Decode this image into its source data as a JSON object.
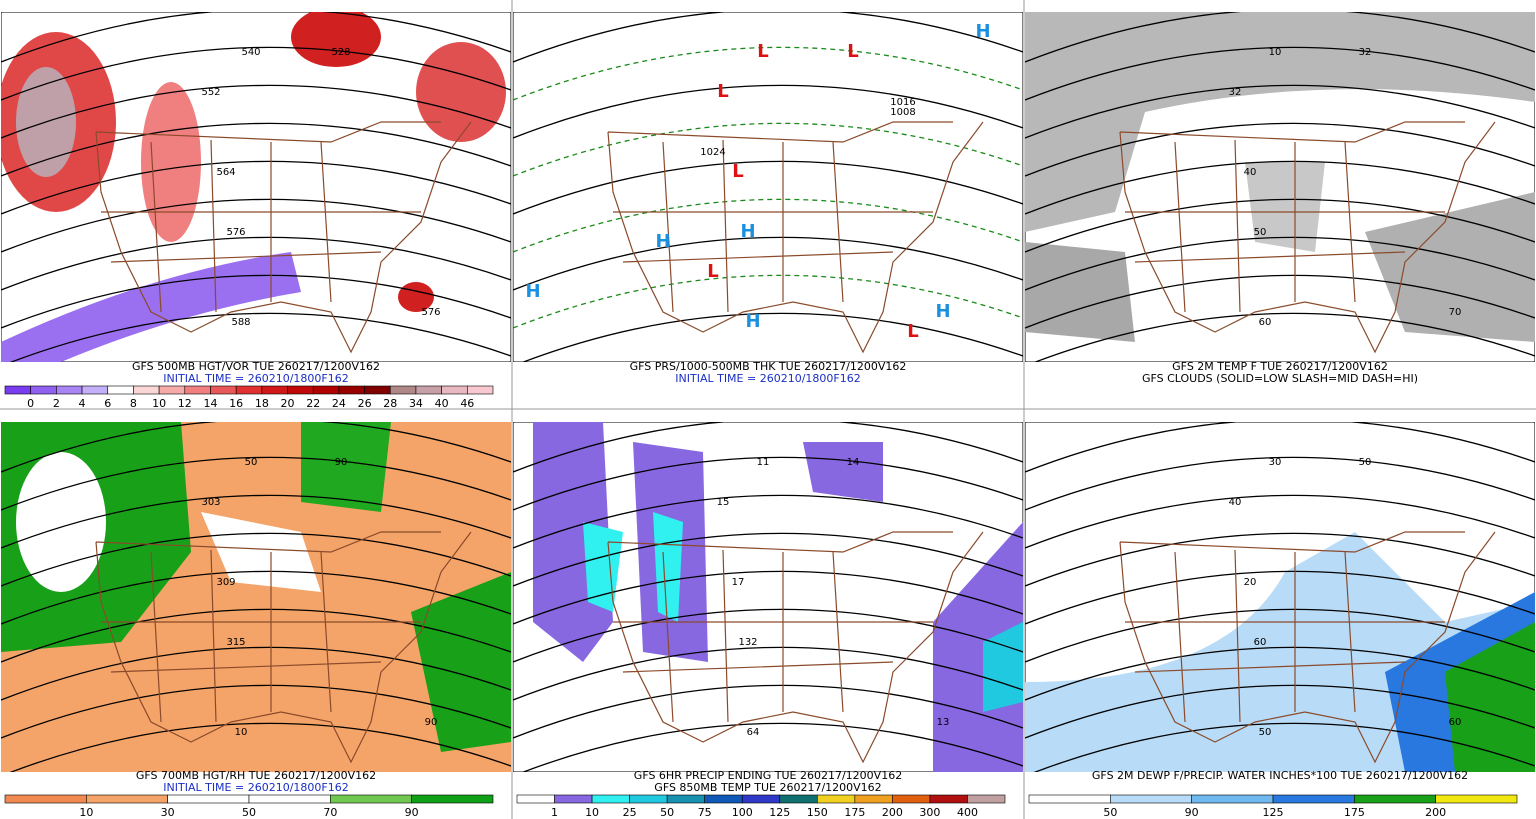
{
  "panels": [
    {
      "captions": [
        "GFS 500MB HGT/VOR TUE 260217/1200V162",
        "INITIAL TIME = 260210/1800F162"
      ],
      "map_labels": [
        "540",
        "528",
        "552",
        "564",
        "576",
        "588",
        "576"
      ],
      "colorbar": {
        "labels": [
          0,
          2,
          4,
          6,
          8,
          10,
          12,
          14,
          16,
          18,
          20,
          22,
          24,
          26,
          28,
          34,
          40,
          46
        ],
        "colors": [
          "#7a3cf0",
          "#9060f0",
          "#a884f4",
          "#c4b0f8",
          "#ffffff",
          "#fbd6d6",
          "#f6aaaa",
          "#f08080",
          "#e85858",
          "#e03030",
          "#d01818",
          "#c00808",
          "#b00000",
          "#980000",
          "#800000",
          "#b08888",
          "#c8a0a8",
          "#e8b8c0",
          "#f8c8d0"
        ]
      }
    },
    {
      "captions": [
        "GFS PRS/1000-500MB THK TUE 260217/1200V162",
        "INITIAL TIME = 260210/1800F162"
      ],
      "map_labels": [
        "L",
        "L",
        "L",
        "L",
        "H",
        "H",
        "H",
        "L",
        "L",
        "H",
        "H",
        "H",
        "1016",
        "1008",
        "1024"
      ]
    },
    {
      "captions": [
        "GFS 2M TEMP F TUE 260217/1200V162",
        "GFS CLOUDS (SOLID=LOW SLASH=MID DASH=HI)"
      ],
      "map_labels": [
        "10",
        "32",
        "32",
        "40",
        "50",
        "60",
        "70"
      ]
    },
    {
      "captions": [
        "GFS 700MB HGT/RH TUE 260217/1200V162",
        "INITIAL TIME = 260210/1800F162"
      ],
      "map_labels": [
        "50",
        "90",
        "303",
        "309",
        "315",
        "10",
        "90"
      ],
      "colorbar": {
        "labels": [
          10,
          30,
          50,
          70,
          90
        ],
        "colors": [
          "#f08a50",
          "#f4a468",
          "#ffffff",
          "#ffffff",
          "#70c850",
          "#10a018"
        ]
      }
    },
    {
      "captions": [
        "GFS 6HR PRECIP ENDING TUE 260217/1200V162",
        "GFS 850MB TEMP TUE 260217/1200V162"
      ],
      "map_labels": [
        "11",
        "14",
        "15",
        "17",
        "132",
        "64",
        "13"
      ],
      "colorbar": {
        "labels": [
          1,
          10,
          25,
          50,
          75,
          100,
          125,
          150,
          175,
          200,
          300,
          400
        ],
        "colors": [
          "#ffffff",
          "#8868e0",
          "#30f0f0",
          "#20c8e0",
          "#1890b0",
          "#1058b8",
          "#3038c8",
          "#107070",
          "#f0d020",
          "#f0a020",
          "#e06010",
          "#b01010",
          "#c0a0a0"
        ]
      }
    },
    {
      "captions": [
        "GFS 2M DEWP F/PRECIP. WATER INCHES*100 TUE 260217/1200V162"
      ],
      "map_labels": [
        "30",
        "50",
        "40",
        "20",
        "60",
        "50",
        "60"
      ],
      "colorbar": {
        "labels": [
          50,
          90,
          125,
          175,
          200
        ],
        "colors": [
          "#ffffff",
          "#b8dcf8",
          "#70b8f0",
          "#2878e0",
          "#18a018",
          "#f0e810"
        ]
      }
    }
  ]
}
